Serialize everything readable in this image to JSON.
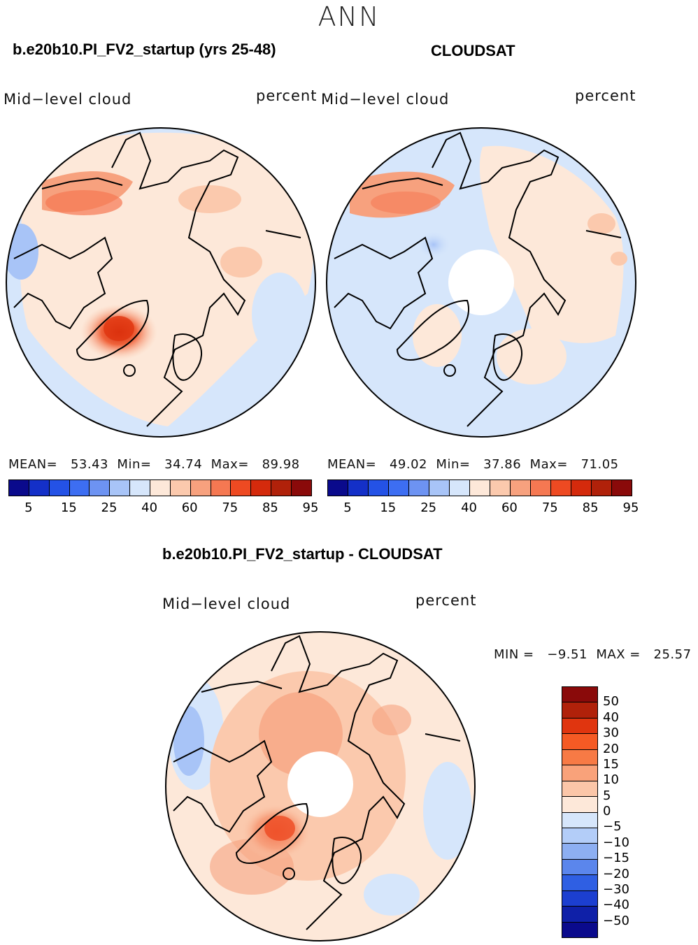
{
  "season": "ANN",
  "panels": [
    {
      "id": "model",
      "title": "b.e20b10.PI_FV2_startup (yrs 25-48)",
      "variable": "Mid−level cloud",
      "units": "percent",
      "stats": {
        "mean_label": "MEAN=",
        "mean": "53.43",
        "min_label": "Min=",
        "min": "34.74",
        "max_label": "Max=",
        "max": "89.98"
      },
      "colorbar": {
        "colors": [
          "#0a0a8c",
          "#1430c8",
          "#2452e6",
          "#3d6ef2",
          "#6d93f2",
          "#a8c4f7",
          "#d6e6fb",
          "#fde8d9",
          "#fbc9ad",
          "#f7a17e",
          "#f57852",
          "#ee4a22",
          "#d42a0c",
          "#b0210a",
          "#8a0a0a"
        ],
        "ticks": [
          "5",
          "15",
          "25",
          "40",
          "60",
          "75",
          "85",
          "95"
        ]
      }
    },
    {
      "id": "obs",
      "title": "CLOUDSAT",
      "variable": "Mid−level cloud",
      "units": "percent",
      "stats": {
        "mean_label": "MEAN=",
        "mean": "49.02",
        "min_label": "Min=",
        "min": "37.86",
        "max_label": "Max=",
        "max": "71.05"
      },
      "colorbar": {
        "colors": [
          "#0a0a8c",
          "#1430c8",
          "#2452e6",
          "#3d6ef2",
          "#6d93f2",
          "#a8c4f7",
          "#d6e6fb",
          "#fde8d9",
          "#fbc9ad",
          "#f7a17e",
          "#f57852",
          "#ee4a22",
          "#d42a0c",
          "#b0210a",
          "#8a0a0a"
        ],
        "ticks": [
          "5",
          "15",
          "25",
          "40",
          "60",
          "75",
          "85",
          "95"
        ]
      }
    }
  ],
  "diff": {
    "title": "b.e20b10.PI_FV2_startup - CLOUDSAT",
    "variable": "Mid−level cloud",
    "units": "percent",
    "minmax": "MIN =   −9.51  MAX =   25.57",
    "colorbar": {
      "colors": [
        "#8a0a0a",
        "#b0210a",
        "#e0350f",
        "#f55a24",
        "#f77a45",
        "#f9a27a",
        "#fbc6a8",
        "#fde8d9",
        "#d6e6fb",
        "#b3cdf8",
        "#8daff2",
        "#5b86ec",
        "#2f5fe3",
        "#1c3fd0",
        "#0f20a8",
        "#0a0a8c"
      ],
      "ticks": [
        "50",
        "40",
        "30",
        "20",
        "15",
        "10",
        "5",
        "0",
        "−5",
        "−10",
        "−15",
        "−20",
        "−30",
        "−40",
        "−50"
      ]
    }
  }
}
